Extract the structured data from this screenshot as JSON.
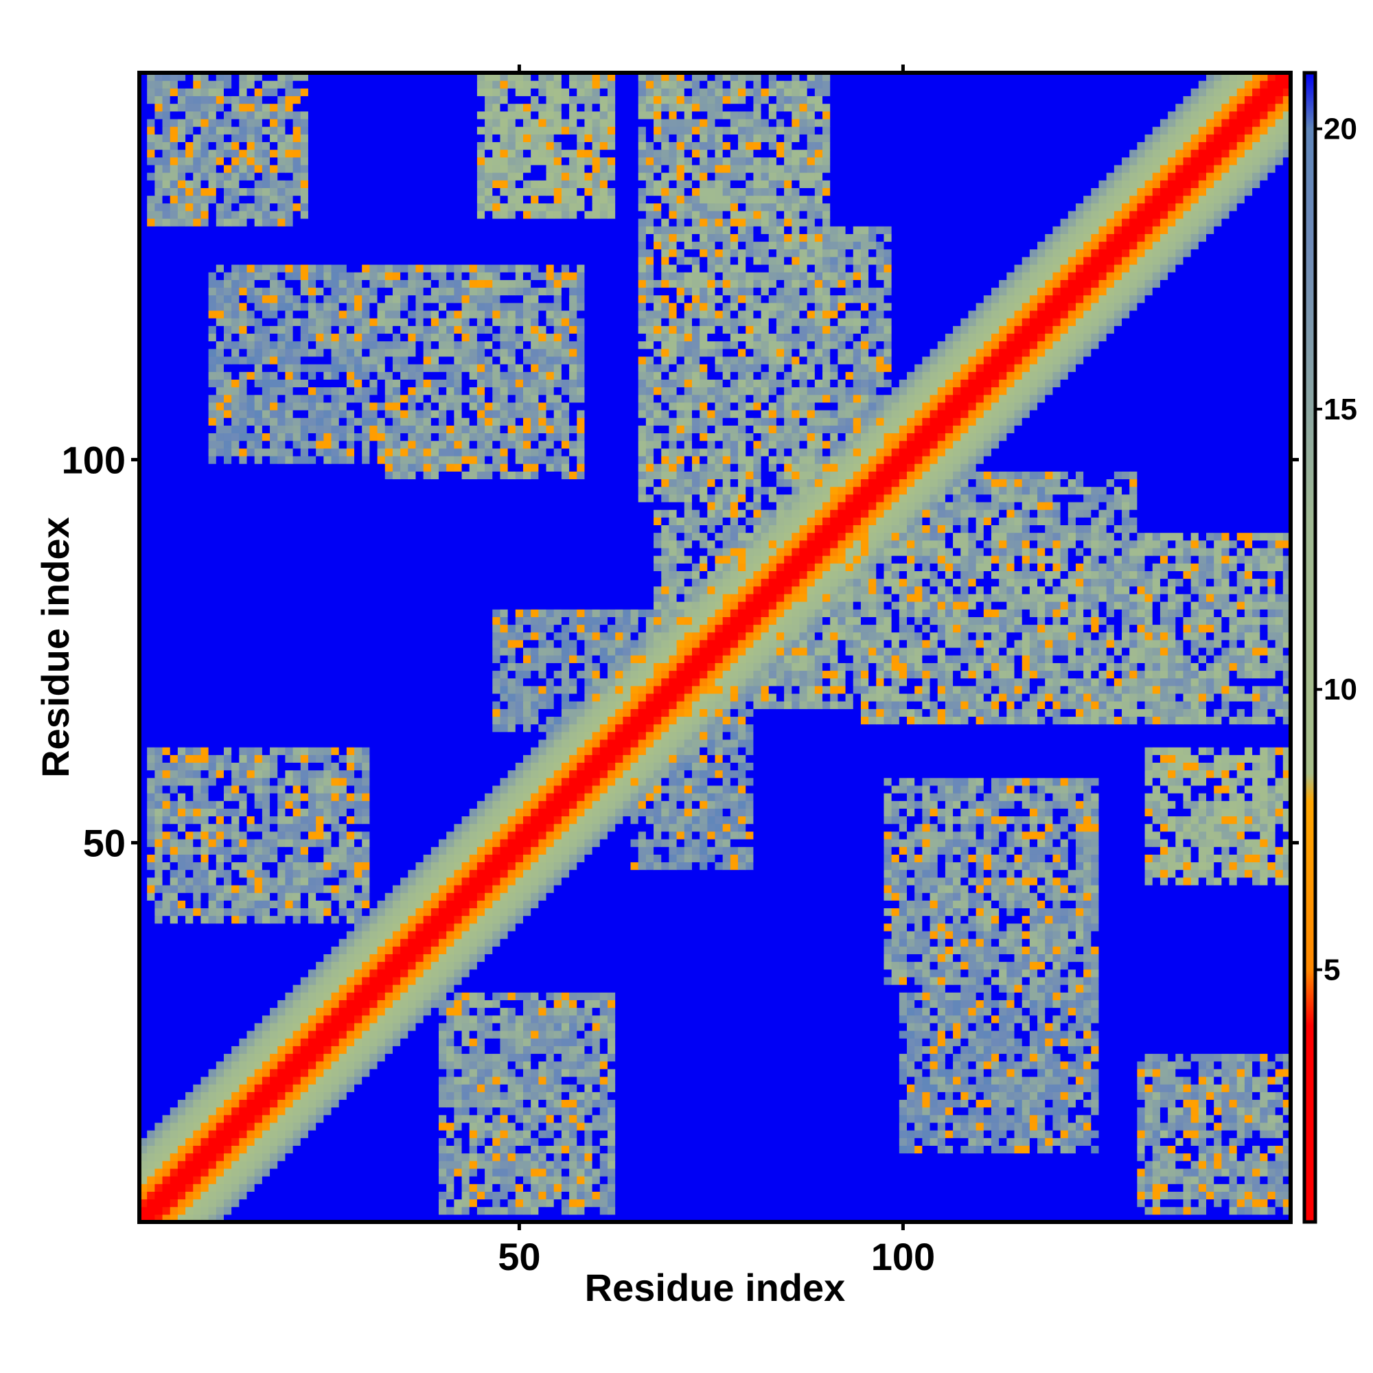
{
  "chart_data": {
    "type": "heatmap",
    "title": "",
    "xlabel": "Residue index",
    "ylabel": "Residue index",
    "n_residues": 150,
    "x_range": [
      1,
      150
    ],
    "y_range": [
      1,
      150
    ],
    "x_ticks": [
      50,
      100
    ],
    "y_ticks": [
      50,
      100
    ],
    "colorbar": {
      "ticks": [
        5,
        10,
        15,
        20
      ],
      "range": [
        0.5,
        21
      ],
      "colors": {
        "red": "#ff0000",
        "orange": "#ff9a00",
        "sage": "#a8bf8a",
        "steel": "#6e8ab8",
        "blue": "#0000f5"
      },
      "stops": [
        {
          "value": 0,
          "color": "#ff0000"
        },
        {
          "value": 4,
          "color": "#ff0000"
        },
        {
          "value": 5,
          "color": "#ff8800"
        },
        {
          "value": 8,
          "color": "#ffa500"
        },
        {
          "value": 8.5,
          "color": "#a8bf8a"
        },
        {
          "value": 13,
          "color": "#a0b992"
        },
        {
          "value": 18,
          "color": "#6e8ab8"
        },
        {
          "value": 20,
          "color": "#5f86ba"
        },
        {
          "value": 21,
          "color": "#0000f5"
        }
      ]
    },
    "diagonal_band": {
      "description_values": "distance grows with |i-j|",
      "offsets": [
        0,
        1,
        2,
        3,
        5,
        8,
        10
      ]
    },
    "contact_blocks": [
      {
        "i_range": [
          2,
          22
        ],
        "j_range": [
          131,
          150
        ],
        "mean_distance": 14
      },
      {
        "i_range": [
          45,
          62
        ],
        "j_range": [
          132,
          150
        ],
        "mean_distance": 11
      },
      {
        "i_range": [
          66,
          90
        ],
        "j_range": [
          95,
          150
        ],
        "mean_distance": 13
      },
      {
        "i_range": [
          10,
          30
        ],
        "j_range": [
          100,
          125
        ],
        "mean_distance": 15
      },
      {
        "i_range": [
          32,
          58
        ],
        "j_range": [
          98,
          125
        ],
        "mean_distance": 14
      },
      {
        "i_range": [
          68,
          96
        ],
        "j_range": [
          68,
          100
        ],
        "mean_distance": 13
      },
      {
        "i_range": [
          100,
          130
        ],
        "j_range": [
          75,
          98
        ],
        "mean_distance": 14
      },
      {
        "i_range": [
          135,
          150
        ],
        "j_range": [
          50,
          62
        ],
        "mean_distance": 11
      },
      {
        "i_range": [
          103,
          125
        ],
        "j_range": [
          30,
          55
        ],
        "mean_distance": 15
      },
      {
        "i_range": [
          132,
          150
        ],
        "j_range": [
          2,
          22
        ],
        "mean_distance": 15
      },
      {
        "i_range": [
          40,
          62
        ],
        "j_range": [
          2,
          30
        ],
        "mean_distance": 14
      },
      {
        "i_range": [
          3,
          28
        ],
        "j_range": [
          40,
          62
        ],
        "mean_distance": 14
      },
      {
        "i_range": [
          47,
          70
        ],
        "j_range": [
          65,
          80
        ],
        "mean_distance": 15
      }
    ]
  }
}
